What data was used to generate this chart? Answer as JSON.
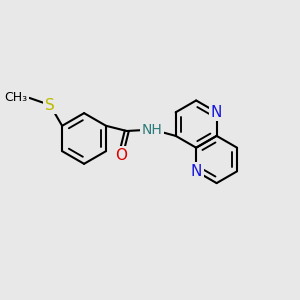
{
  "bg_color": "#e8e8e8",
  "bond_color": "#000000",
  "bond_width": 1.5,
  "font_size": 10,
  "colors": {
    "N": "#1515dd",
    "O": "#dd0000",
    "S": "#bbbb00",
    "H": "#2a7a7a",
    "C": "#000000"
  },
  "figsize": [
    3.0,
    3.0
  ],
  "dpi": 100
}
